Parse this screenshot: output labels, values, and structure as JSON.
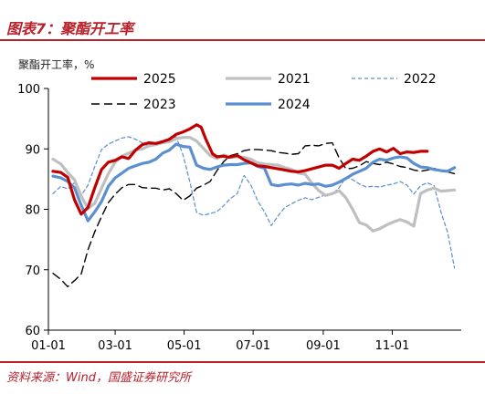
{
  "header": {
    "figure_title": "图表7：聚酯开工率"
  },
  "footer": {
    "source": "资料来源：Wind，国盛证券研究所"
  },
  "colors": {
    "s2025": "#c00000",
    "s2021": "#bfbfbf",
    "s2022": "#5b8fd0",
    "s2023": "#000000",
    "s2024": "#5b8fd0",
    "axis": "#000000",
    "accent": "#b8202a"
  },
  "chart_data": {
    "type": "line",
    "ylabel": "聚酯开工率，%",
    "ylim": [
      60,
      100
    ],
    "yticks": [
      60,
      70,
      80,
      90,
      100
    ],
    "xlim": [
      1,
      366
    ],
    "xticks": [
      {
        "label": "01-01",
        "day": 1
      },
      {
        "label": "03-01",
        "day": 60
      },
      {
        "label": "05-01",
        "day": 121
      },
      {
        "label": "07-01",
        "day": 182
      },
      {
        "label": "09-01",
        "day": 244
      },
      {
        "label": "11-01",
        "day": 305
      }
    ],
    "legend_position": "top",
    "series": [
      {
        "name": "2025",
        "style": "solid-thick",
        "color": "#c00000",
        "x": [
          5,
          12,
          18,
          24,
          30,
          36,
          42,
          48,
          54,
          60,
          66,
          72,
          78,
          84,
          90,
          96,
          102,
          108,
          114,
          120,
          126,
          132,
          136,
          140,
          146,
          150,
          156,
          160,
          168,
          174,
          180,
          186,
          192,
          198,
          204,
          210,
          216,
          222,
          228,
          234,
          240,
          246,
          252,
          258,
          264,
          270,
          276,
          282,
          288,
          294,
          300,
          306,
          312,
          318,
          324,
          330,
          336
        ],
        "values": [
          86.3,
          86.1,
          85.3,
          81.6,
          79.2,
          80.3,
          83.6,
          86.6,
          87.8,
          88.1,
          88.7,
          88.4,
          89.8,
          90.7,
          91.0,
          90.9,
          91.2,
          91.6,
          92.4,
          92.8,
          93.3,
          94.0,
          93.6,
          91.7,
          89.2,
          88.7,
          88.8,
          88.6,
          88.9,
          88.2,
          87.7,
          87.2,
          87.1,
          86.9,
          86.7,
          86.5,
          86.3,
          86.2,
          86.4,
          86.7,
          87.0,
          87.3,
          87.3,
          86.8,
          87.6,
          88.3,
          88.1,
          88.8,
          89.6,
          90.0,
          89.5,
          90.1,
          89.2,
          89.5,
          89.4,
          89.6,
          89.6
        ]
      },
      {
        "name": "2021",
        "style": "solid-thick",
        "color": "#bfbfbf",
        "x": [
          5,
          12,
          18,
          24,
          30,
          36,
          42,
          48,
          54,
          60,
          66,
          72,
          78,
          84,
          90,
          96,
          102,
          108,
          114,
          120,
          126,
          132,
          138,
          144,
          150,
          156,
          162,
          168,
          174,
          180,
          186,
          192,
          198,
          204,
          210,
          216,
          222,
          228,
          234,
          240,
          246,
          252,
          258,
          264,
          270,
          276,
          282,
          288,
          294,
          300,
          306,
          312,
          318,
          324,
          330,
          336,
          342,
          348,
          354,
          360
        ],
        "values": [
          88.3,
          87.5,
          86.1,
          84.9,
          82.2,
          80.1,
          81.0,
          83.5,
          85.9,
          87.8,
          88.8,
          89.3,
          89.8,
          90.0,
          90.5,
          90.7,
          91.0,
          91.2,
          91.7,
          91.9,
          91.9,
          91.3,
          90.1,
          88.9,
          88.4,
          89.0,
          88.6,
          88.7,
          88.6,
          88.3,
          87.7,
          87.5,
          87.4,
          87.3,
          86.9,
          86.6,
          86.0,
          85.8,
          84.3,
          83.1,
          82.3,
          82.6,
          83.1,
          81.9,
          80.0,
          77.8,
          77.4,
          76.4,
          76.8,
          77.4,
          77.9,
          78.3,
          77.9,
          77.2,
          82.6,
          83.2,
          83.5,
          83.0,
          83.1,
          83.2
        ]
      },
      {
        "name": "2022",
        "style": "dashed-thin",
        "color": "#5b8fd0",
        "x": [
          5,
          12,
          18,
          24,
          30,
          36,
          42,
          48,
          54,
          60,
          66,
          72,
          78,
          84,
          90,
          96,
          102,
          108,
          114,
          120,
          126,
          132,
          138,
          144,
          150,
          156,
          162,
          168,
          174,
          180,
          186,
          192,
          198,
          204,
          210,
          216,
          222,
          228,
          234,
          240,
          246,
          252,
          258,
          264,
          270,
          276,
          282,
          288,
          294,
          300,
          306,
          312,
          318,
          324,
          330,
          336,
          342,
          348,
          354,
          360
        ],
        "values": [
          82.6,
          83.8,
          83.4,
          84.4,
          82.3,
          84.0,
          87.1,
          89.9,
          90.8,
          91.3,
          91.8,
          92.0,
          91.6,
          91.0,
          90.4,
          90.7,
          91.2,
          91.8,
          92.0,
          89.0,
          84.6,
          79.5,
          79.0,
          79.3,
          79.6,
          80.6,
          81.8,
          82.6,
          85.6,
          84.0,
          81.4,
          79.6,
          77.3,
          78.9,
          80.3,
          80.9,
          81.5,
          81.9,
          81.6,
          82.0,
          82.4,
          82.5,
          83.6,
          85.3,
          84.9,
          84.2,
          83.7,
          83.8,
          83.7,
          84.0,
          84.2,
          84.6,
          84.0,
          82.5,
          83.9,
          84.4,
          83.9,
          79.6,
          76.2,
          70.3
        ]
      },
      {
        "name": "2023",
        "style": "dashed-thick",
        "color": "#000000",
        "x": [
          5,
          12,
          18,
          24,
          30,
          36,
          42,
          48,
          54,
          60,
          66,
          72,
          78,
          84,
          90,
          96,
          102,
          108,
          114,
          120,
          126,
          132,
          138,
          144,
          150,
          156,
          162,
          168,
          174,
          180,
          186,
          192,
          198,
          204,
          210,
          216,
          222,
          228,
          234,
          240,
          246,
          252,
          258,
          264,
          270,
          276,
          282,
          288,
          294,
          300,
          306,
          312,
          318,
          324,
          330,
          336,
          342,
          348,
          354,
          360
        ],
        "values": [
          69.4,
          68.4,
          67.2,
          68.2,
          69.3,
          73.3,
          76.3,
          78.8,
          81.1,
          82.5,
          83.6,
          84.1,
          84.1,
          83.6,
          83.5,
          83.5,
          83.2,
          83.4,
          82.6,
          81.5,
          82.2,
          83.5,
          84.0,
          84.6,
          86.4,
          87.9,
          88.9,
          89.2,
          89.7,
          89.9,
          89.9,
          89.8,
          89.7,
          89.4,
          89.3,
          89.1,
          89.2,
          90.5,
          90.6,
          90.5,
          90.9,
          91.0,
          88.5,
          86.7,
          86.8,
          87.2,
          87.9,
          87.6,
          87.4,
          87.8,
          87.5,
          87.1,
          86.9,
          86.5,
          86.3,
          86.5,
          86.8,
          86.4,
          86.2,
          85.9
        ]
      },
      {
        "name": "2024",
        "style": "solid-thick",
        "color": "#5b8fd0",
        "x": [
          5,
          12,
          18,
          24,
          30,
          36,
          42,
          48,
          54,
          60,
          66,
          72,
          78,
          84,
          90,
          96,
          102,
          108,
          114,
          120,
          126,
          132,
          138,
          144,
          150,
          156,
          162,
          168,
          174,
          180,
          186,
          192,
          198,
          204,
          210,
          216,
          222,
          228,
          234,
          240,
          246,
          252,
          258,
          264,
          270,
          276,
          282,
          288,
          294,
          300,
          306,
          312,
          318,
          324,
          330,
          336,
          342,
          348,
          354,
          360
        ],
        "values": [
          85.5,
          85.2,
          84.6,
          83.6,
          80.7,
          78.1,
          79.6,
          81.3,
          83.8,
          85.2,
          86.0,
          86.8,
          87.2,
          87.6,
          87.8,
          88.3,
          89.3,
          89.8,
          90.8,
          90.4,
          90.3,
          87.3,
          86.8,
          86.6,
          87.0,
          87.3,
          87.4,
          87.4,
          87.6,
          87.7,
          87.1,
          86.8,
          84.1,
          83.9,
          84.1,
          84.2,
          84.0,
          84.3,
          84.1,
          84.2,
          83.8,
          84.0,
          84.5,
          85.1,
          85.8,
          86.3,
          86.8,
          87.8,
          88.3,
          88.1,
          88.5,
          88.7,
          88.5,
          87.6,
          87.0,
          86.9,
          86.6,
          86.4,
          86.3,
          86.9
        ]
      }
    ]
  }
}
